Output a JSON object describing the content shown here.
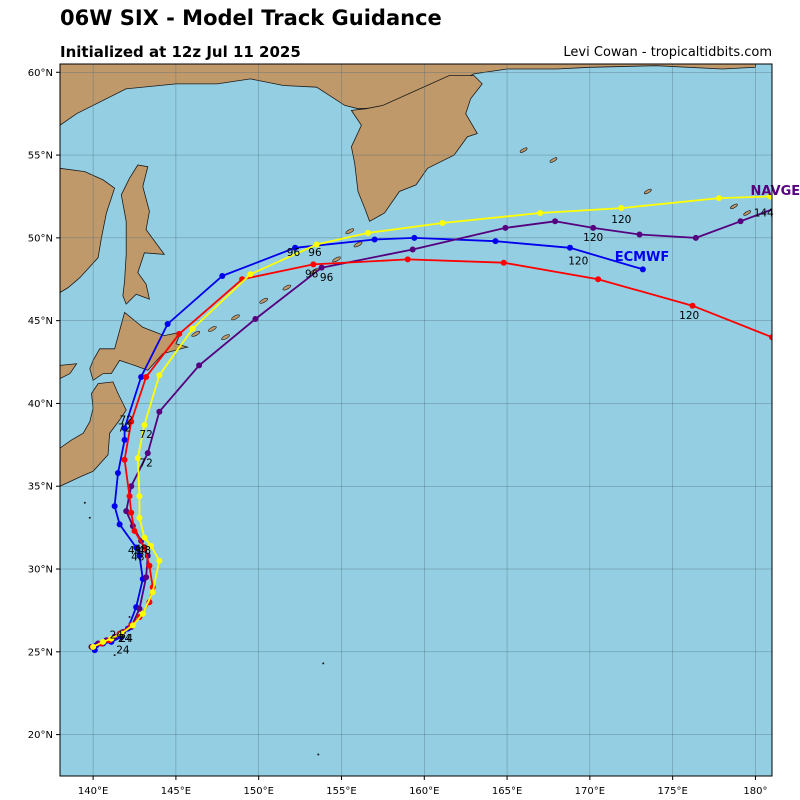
{
  "header": {
    "title": "06W SIX - Model Track Guidance",
    "subtitle": "Initialized at 12z Jul 11 2025",
    "credit": "Levi Cowan - tropicaltidbits.com"
  },
  "colors": {
    "ocean": "#94cee2",
    "land": "#c0996b",
    "coast": "#1a1a1a",
    "grid": "#4a6d7a"
  },
  "axes": {
    "lon_range": [
      138,
      181
    ],
    "lat_range": [
      17.5,
      60.5
    ],
    "lon_ticks": [
      140,
      145,
      150,
      155,
      160,
      165,
      170,
      175,
      180
    ],
    "lon_tick_labels": [
      "140°E",
      "145°E",
      "150°E",
      "155°E",
      "160°E",
      "165°E",
      "170°E",
      "175°E",
      "180°"
    ],
    "lat_ticks": [
      20,
      25,
      30,
      35,
      40,
      45,
      50,
      55,
      60
    ],
    "lat_tick_labels": [
      "20°N",
      "25°N",
      "30°N",
      "35°N",
      "40°N",
      "45°N",
      "50°N",
      "55°N",
      "60°N"
    ],
    "grid": true
  },
  "chart_data": {
    "type": "map-tracks",
    "series": [
      {
        "name": "ECMWF",
        "color": "#0000ee",
        "show_name": true,
        "points": [
          [
            40.1,
            25.1
          ],
          [
            40.2,
            25.4
          ],
          [
            40.6,
            25.5
          ],
          [
            41.1,
            25.6
          ],
          [
            41.7,
            25.9
          ],
          [
            42.1,
            26.4
          ],
          [
            42.6,
            27.7
          ],
          [
            43.0,
            29.4
          ],
          [
            42.8,
            30.8
          ],
          [
            42.6,
            31.3
          ],
          [
            41.6,
            32.7
          ],
          [
            41.3,
            33.8
          ],
          [
            41.5,
            35.8
          ],
          [
            41.9,
            37.8
          ],
          [
            41.9,
            38.5
          ],
          [
            42.9,
            41.6
          ],
          [
            44.5,
            44.8
          ],
          [
            47.8,
            47.7
          ],
          [
            52.2,
            49.4
          ],
          [
            57.0,
            49.9
          ],
          [
            59.4,
            50.0
          ],
          [
            64.3,
            49.8
          ],
          [
            68.8,
            49.4
          ],
          [
            73.2,
            48.1
          ]
        ],
        "labels": [
          {
            "text": "24",
            "lon": 41.8,
            "lat": 24.9
          },
          {
            "text": "48",
            "lon": 42.7,
            "lat": 30.5
          },
          {
            "text": "72",
            "lon": 42.0,
            "lat": 38.8
          },
          {
            "text": "96",
            "lon": 53.4,
            "lat": 48.9
          },
          {
            "text": "120",
            "lon": 69.3,
            "lat": 48.4
          }
        ]
      },
      {
        "name": "NAVGEM",
        "color": "#55007f",
        "show_name": true,
        "points": [
          [
            39.9,
            25.3
          ],
          [
            40.3,
            25.5
          ],
          [
            40.8,
            25.7
          ],
          [
            41.3,
            25.9
          ],
          [
            41.8,
            26.2
          ],
          [
            42.3,
            26.5
          ],
          [
            42.8,
            27.6
          ],
          [
            43.2,
            29.5
          ],
          [
            43.3,
            30.8
          ],
          [
            42.9,
            31.7
          ],
          [
            42.4,
            32.6
          ],
          [
            42.0,
            33.5
          ],
          [
            42.3,
            35.0
          ],
          [
            43.3,
            37.0
          ],
          [
            44.0,
            39.5
          ],
          [
            46.4,
            42.3
          ],
          [
            49.8,
            45.1
          ],
          [
            53.8,
            48.2
          ],
          [
            59.3,
            49.3
          ],
          [
            64.9,
            50.6
          ],
          [
            67.9,
            51.0
          ],
          [
            70.2,
            50.6
          ],
          [
            73.0,
            50.2
          ],
          [
            76.4,
            50.0
          ],
          [
            79.1,
            51.0
          ],
          [
            81.5,
            51.9
          ]
        ],
        "labels": [
          {
            "text": "24",
            "lon": 42.0,
            "lat": 25.6
          },
          {
            "text": "48",
            "lon": 43.1,
            "lat": 30.9
          },
          {
            "text": "72",
            "lon": 43.2,
            "lat": 36.2
          },
          {
            "text": "96",
            "lon": 54.1,
            "lat": 47.4
          },
          {
            "text": "120",
            "lon": 70.2,
            "lat": 49.8
          },
          {
            "text": "144",
            "lon": 80.5,
            "lat": 51.3
          }
        ]
      },
      {
        "name": "",
        "color": "#ff0000",
        "show_name": false,
        "points": [
          [
            40.0,
            25.3
          ],
          [
            40.5,
            25.5
          ],
          [
            41.0,
            25.7
          ],
          [
            41.6,
            26.1
          ],
          [
            42.3,
            26.6
          ],
          [
            42.8,
            27.1
          ],
          [
            43.4,
            28.0
          ],
          [
            43.6,
            28.9
          ],
          [
            43.4,
            30.2
          ],
          [
            43.1,
            31.3
          ],
          [
            42.5,
            32.3
          ],
          [
            42.3,
            33.4
          ],
          [
            42.2,
            34.4
          ],
          [
            41.9,
            36.6
          ],
          [
            42.3,
            38.9
          ],
          [
            43.2,
            41.6
          ],
          [
            45.2,
            44.2
          ],
          [
            49.0,
            47.5
          ],
          [
            53.3,
            48.4
          ],
          [
            59.0,
            48.7
          ],
          [
            64.8,
            48.5
          ],
          [
            70.5,
            47.5
          ],
          [
            76.2,
            45.9
          ],
          [
            81.0,
            44.0
          ]
        ],
        "labels": [
          {
            "text": "24",
            "lon": 41.4,
            "lat": 25.8
          },
          {
            "text": "48",
            "lon": 42.9,
            "lat": 31.0
          },
          {
            "text": "72",
            "lon": 41.9,
            "lat": 38.3
          },
          {
            "text": "96",
            "lon": 53.2,
            "lat": 47.6
          },
          {
            "text": "120",
            "lon": 76.0,
            "lat": 45.1
          }
        ]
      },
      {
        "name": "",
        "color": "#ffff00",
        "show_name": true,
        "points": [
          [
            40.0,
            25.3
          ],
          [
            40.6,
            25.6
          ],
          [
            41.1,
            25.8
          ],
          [
            41.7,
            26.1
          ],
          [
            42.4,
            26.6
          ],
          [
            43.0,
            27.3
          ],
          [
            43.6,
            28.6
          ],
          [
            44.0,
            30.5
          ],
          [
            43.5,
            31.4
          ],
          [
            43.1,
            31.9
          ],
          [
            42.8,
            33.1
          ],
          [
            42.8,
            34.4
          ],
          [
            42.7,
            36.7
          ],
          [
            43.1,
            38.7
          ],
          [
            44.0,
            41.7
          ],
          [
            46.0,
            44.5
          ],
          [
            49.5,
            47.8
          ],
          [
            53.5,
            49.6
          ],
          [
            56.6,
            50.3
          ],
          [
            61.1,
            50.9
          ],
          [
            67.0,
            51.5
          ],
          [
            71.9,
            51.8
          ],
          [
            77.8,
            52.4
          ],
          [
            80.9,
            52.5
          ]
        ],
        "labels": [
          {
            "text": "24",
            "lon": 41.9,
            "lat": 25.6
          },
          {
            "text": "48",
            "lon": 42.5,
            "lat": 30.9
          },
          {
            "text": "72",
            "lon": 43.2,
            "lat": 37.9
          },
          {
            "text": "96",
            "lon": 52.1,
            "lat": 48.9
          },
          {
            "text": "120",
            "lon": 71.9,
            "lat": 50.9
          }
        ]
      }
    ],
    "model_name_positions": {
      "ECMWF": {
        "lon": 71.5,
        "lat": 48.6
      },
      "NAVGEM": {
        "lon": 79.7,
        "lat": 52.6
      }
    }
  }
}
